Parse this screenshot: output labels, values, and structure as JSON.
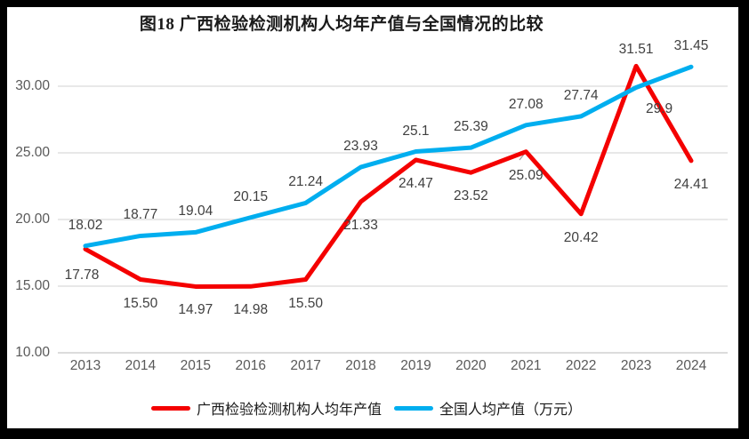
{
  "frame": {
    "background": "#ffffff",
    "border_color": "#000000"
  },
  "chart_data": {
    "type": "line",
    "title": "图18 广西检验检测机构人均年产值与全国情况的比较",
    "xlabel": "",
    "ylabel": "",
    "x_tick_labels": [
      "2013",
      "2014",
      "2015",
      "2016",
      "2017",
      "2018",
      "2019",
      "2020",
      "2021",
      "2022",
      "2023",
      "2024"
    ],
    "y_tick_labels": [
      "30.00",
      "25.00",
      "20.00",
      "15.00",
      "10.00"
    ],
    "ylim": [
      10,
      32.5
    ],
    "grid": "horizontal",
    "legend_position": "bottom-center",
    "series": [
      {
        "key": "guangxi",
        "name": "广西检验检测机构人均年产值",
        "color": "#f40000",
        "values": [
          17.78,
          15.5,
          14.97,
          14.98,
          15.5,
          21.33,
          24.47,
          23.52,
          25.09,
          20.42,
          31.51,
          24.41
        ],
        "labels": [
          "17.78",
          "15.50",
          "14.97",
          "14.98",
          "15.50",
          "21.33",
          "24.47",
          "23.52",
          "25.09",
          "20.42",
          "31.51",
          "24.41"
        ]
      },
      {
        "key": "national",
        "name": "全国人均产值（万元）",
        "color": "#00aeef",
        "values": [
          18.02,
          18.77,
          19.04,
          20.15,
          21.24,
          23.93,
          25.1,
          25.39,
          27.08,
          27.74,
          29.9,
          31.45
        ],
        "labels": [
          "18.02",
          "18.77",
          "19.04",
          "20.15",
          "21.24",
          "23.93",
          "25.1",
          "25.39",
          "27.08",
          "27.74",
          "29.9",
          "31.45"
        ]
      }
    ],
    "colors": {
      "gridline": "#d9d9d9",
      "axis_line": "#c6c6c6",
      "tick_text": "#595959",
      "data_label_text": "#404040",
      "title_text": "#1a1a1a",
      "legend_text": "#1a1a1a",
      "leader_line": "#a6a6a6"
    }
  }
}
